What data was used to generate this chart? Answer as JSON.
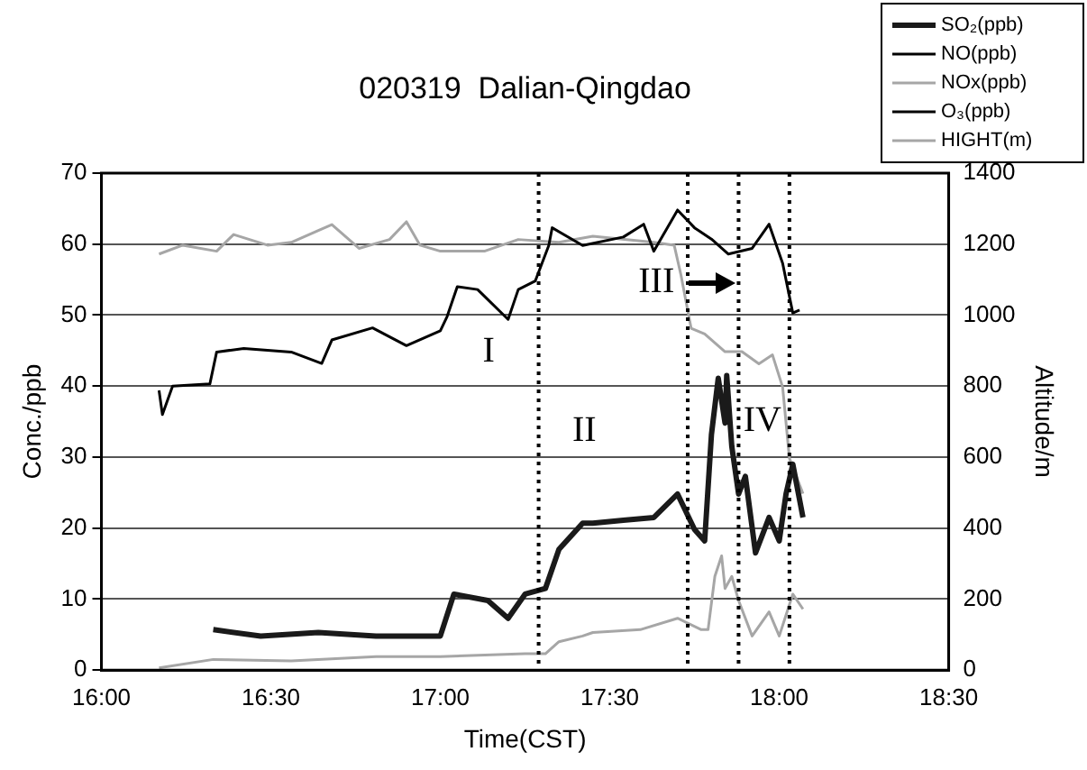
{
  "chart_data": {
    "type": "line",
    "title": "020319  Dalian-Qingdao",
    "xlabel": "Time(CST)",
    "ylabel": "Conc./ppb",
    "y2label": "Altitude/m",
    "xlim": [
      16,
      18.5
    ],
    "xticks": [
      {
        "value": 16,
        "label": "16:00"
      },
      {
        "value": 16.5,
        "label": "16:30"
      },
      {
        "value": 17,
        "label": "17:00"
      },
      {
        "value": 17.5,
        "label": "17:30"
      },
      {
        "value": 18,
        "label": "18:00"
      },
      {
        "value": 18.5,
        "label": "18:30"
      }
    ],
    "ylim": [
      0,
      70
    ],
    "yticks": [
      0,
      10,
      20,
      30,
      40,
      50,
      60,
      70
    ],
    "y2lim": [
      0,
      1400
    ],
    "y2ticks": [
      0,
      200,
      400,
      600,
      800,
      1000,
      1200,
      1400
    ],
    "grid": "y",
    "legend": "top right",
    "series": [
      {
        "name": "SO₂(ppb)",
        "color": "#1a1a1a",
        "x": [
          16.33,
          16.47,
          16.64,
          16.81,
          17.0,
          17.04,
          17.14,
          17.2,
          17.25,
          17.31,
          17.35,
          17.42,
          17.45,
          17.54,
          17.63,
          17.7,
          17.75,
          17.78,
          17.8,
          17.82,
          17.84,
          17.845,
          17.86,
          17.88,
          17.9,
          17.93,
          17.97,
          18.0,
          18.02,
          18.04,
          18.07
        ],
        "values": [
          5.7,
          4.8,
          5.3,
          4.8,
          4.8,
          10.7,
          9.8,
          7.3,
          10.7,
          11.5,
          17,
          20.7,
          20.7,
          21.1,
          21.5,
          24.8,
          19.8,
          18.2,
          33.2,
          41.1,
          34.8,
          41.5,
          31.5,
          24.8,
          27.3,
          16.5,
          21.5,
          18.2,
          24.8,
          29,
          21.5
        ]
      },
      {
        "name": "NO(ppb)",
        "color": "#000000"
      },
      {
        "name": "NOx(ppb)",
        "color": "#a6a6a6",
        "x": [
          16.17,
          16.33,
          16.56,
          16.81,
          17.0,
          17.25,
          17.31,
          17.35,
          17.42,
          17.45,
          17.59,
          17.7,
          17.77,
          17.79,
          17.81,
          17.83,
          17.84,
          17.86,
          17.88,
          17.92,
          17.97,
          18.0,
          18.04,
          18.07
        ],
        "values": [
          0.3,
          1.5,
          1.3,
          1.9,
          1.9,
          2.3,
          2.3,
          4,
          4.8,
          5.3,
          5.7,
          7.3,
          5.7,
          5.7,
          13.2,
          16.1,
          11.5,
          13.2,
          9.8,
          4.8,
          8.2,
          4.8,
          10.7,
          8.6
        ]
      },
      {
        "name": "O₃(ppb)",
        "color": "#000000",
        "x": [
          16.17,
          16.18,
          16.21,
          16.32,
          16.34,
          16.42,
          16.56,
          16.65,
          16.68,
          16.8,
          16.9,
          17.0,
          17.02,
          17.05,
          17.11,
          17.2,
          17.23,
          17.28,
          17.32,
          17.33,
          17.42,
          17.54,
          17.6,
          17.63,
          17.7,
          17.75,
          17.8,
          17.85,
          17.92,
          17.97,
          18.01,
          18.04,
          18.06
        ],
        "values": [
          39.4,
          36,
          40,
          40.3,
          44.8,
          45.3,
          44.8,
          43.2,
          46.5,
          48.2,
          45.7,
          47.8,
          49.8,
          54,
          53.6,
          49.4,
          53.6,
          54.8,
          59.8,
          62.3,
          59.8,
          61,
          62.8,
          59,
          64.8,
          62.3,
          60.7,
          58.6,
          59.4,
          62.8,
          57.3,
          50.3,
          50.7
        ]
      },
      {
        "name": "HIGHT(m)",
        "color": "#a6a6a6",
        "axis": "y2",
        "x": [
          16.17,
          16.24,
          16.34,
          16.39,
          16.49,
          16.56,
          16.68,
          16.76,
          16.85,
          16.9,
          16.94,
          17.0,
          17.13,
          17.23,
          17.35,
          17.45,
          17.63,
          17.69,
          17.71,
          17.74,
          17.78,
          17.84,
          17.89,
          17.94,
          17.98,
          18.01,
          18.03,
          18.07
        ],
        "values": [
          1172,
          1197,
          1180,
          1227,
          1197,
          1205,
          1255,
          1188,
          1213,
          1263,
          1197,
          1180,
          1180,
          1213,
          1205,
          1222,
          1205,
          1197,
          1113,
          963,
          947,
          897,
          897,
          863,
          888,
          797,
          597,
          497
        ]
      }
    ],
    "ref_lines": [
      {
        "axis": "x",
        "value": 17.29,
        "color": "#000000",
        "line_style": "dotted"
      },
      {
        "axis": "x",
        "value": 17.73,
        "color": "#000000",
        "line_style": "dotted"
      },
      {
        "axis": "x",
        "value": 17.88,
        "color": "#000000",
        "line_style": "dotted"
      },
      {
        "axis": "x",
        "value": 18.03,
        "color": "#000000",
        "line_style": "dotted"
      }
    ],
    "annotations": [
      "I",
      "II",
      "III",
      "IV"
    ]
  }
}
